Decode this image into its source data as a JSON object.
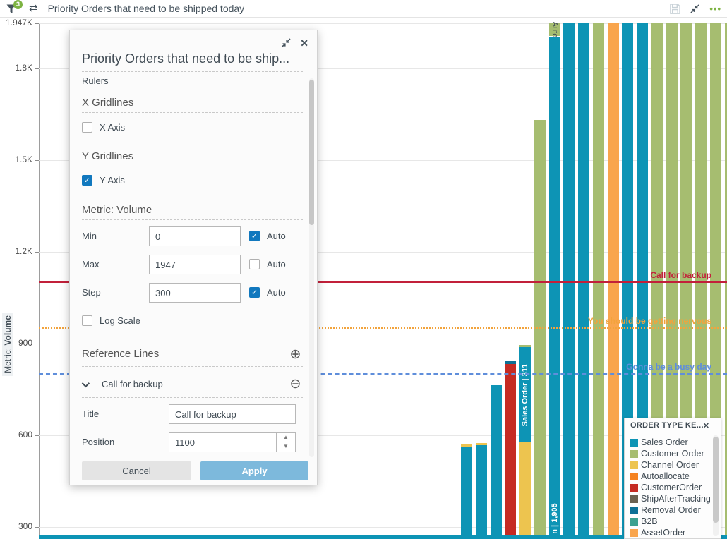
{
  "topbar": {
    "filter_badge": "3",
    "title": "Priority Orders that need to be shipped today"
  },
  "ui_colors": {
    "badge_green": "#7db342",
    "accent_scrollbar": "#0d94b5",
    "checkbox_checked": "#1178be",
    "apply_button": "#7db9dc"
  },
  "dialog": {
    "title": "Priority Orders that need to be ship...",
    "rulers_label": "Rulers",
    "x_gridlines": {
      "heading": "X Gridlines",
      "checkbox_label": "X Axis",
      "checked": false
    },
    "y_gridlines": {
      "heading": "Y Gridlines",
      "checkbox_label": "Y Axis",
      "checked": true
    },
    "metric": {
      "heading": "Metric: Volume",
      "rows": [
        {
          "label": "Min",
          "value": "0",
          "auto_label": "Auto",
          "auto_checked": true
        },
        {
          "label": "Max",
          "value": "1947",
          "auto_label": "Auto",
          "auto_checked": false
        },
        {
          "label": "Step",
          "value": "300",
          "auto_label": "Auto",
          "auto_checked": true
        }
      ],
      "log_scale_label": "Log Scale",
      "log_scale_checked": false
    },
    "reference_lines": {
      "heading": "Reference Lines",
      "line_name": "Call for backup",
      "title_label": "Title",
      "title_value": "Call for backup",
      "position_label": "Position",
      "position_value": "1100"
    },
    "cancel_label": "Cancel",
    "apply_label": "Apply"
  },
  "legend": {
    "title": "ORDER TYPE KE...",
    "items": [
      {
        "label": "Sales Order",
        "key": "sales_order"
      },
      {
        "label": "Customer Order",
        "key": "customer_order"
      },
      {
        "label": "Channel Order",
        "key": "channel_order"
      },
      {
        "label": "Autoallocate",
        "key": "autoallocate"
      },
      {
        "label": "CustomerOrder",
        "key": "customerorder_red"
      },
      {
        "label": "ShipAfterTracking",
        "key": "ship_after_tracking"
      },
      {
        "label": "Removal Order",
        "key": "removal_order"
      },
      {
        "label": "B2B",
        "key": "b2b"
      },
      {
        "label": "AssetOrder",
        "key": "asset_order"
      }
    ]
  },
  "chart_data": {
    "type": "bar",
    "title": "Priority Orders that need to be shipped today",
    "ylabel": "Metric: Volume",
    "ylabel_parts": [
      "Metric:",
      "Volume"
    ],
    "ylim": [
      0,
      1947
    ],
    "step": 300,
    "grid": "y-axis only",
    "y_ticks": [
      {
        "label": "1.947K",
        "value": 1947
      },
      {
        "label": "1.8K",
        "value": 1800
      },
      {
        "label": "1.5K",
        "value": 1500
      },
      {
        "label": "1.2K",
        "value": 1200
      },
      {
        "label": "900",
        "value": 900
      },
      {
        "label": "600",
        "value": 600
      },
      {
        "label": "300",
        "value": 300
      }
    ],
    "key_colors": {
      "sales_order": "#0d94b5",
      "customer_order": "#a6bd70",
      "channel_order": "#edc44f",
      "autoallocate": "#f58220",
      "customerorder_red": "#c52b23",
      "ship_after_tracking": "#6b6150",
      "removal_order": "#0d7095",
      "b2b": "#3ba18f",
      "asset_order": "#f9a54d"
    },
    "reference_lines": [
      {
        "title": "Call for backup",
        "value": 1100,
        "color": "#c2203a",
        "style": "solid"
      },
      {
        "title": "You should be getting nervous",
        "value": 950,
        "color": "#f2a33c",
        "style": "dotted"
      },
      {
        "title": "Gonna be a busy day",
        "value": 800,
        "color": "#5f8edb",
        "style": "dashed"
      }
    ],
    "bars": [
      {
        "segments": [
          [
            "sales_order",
            563
          ],
          [
            "channel_order",
            7
          ]
        ]
      },
      {
        "segments": [
          [
            "sales_order",
            568
          ],
          [
            "channel_order",
            7
          ]
        ]
      },
      {
        "segments": [
          [
            "sales_order",
            765
          ]
        ]
      },
      {
        "segments": [
          [
            "customerorder_red",
            833
          ],
          [
            "removal_order",
            9
          ]
        ]
      },
      {
        "segments": [
          [
            "channel_order",
            577
          ],
          [
            "sales_order",
            311
          ],
          [
            "customer_order",
            7
          ]
        ],
        "inside_label": {
          "text": "Sales Order | 311",
          "segment": 1
        }
      },
      {
        "segments": [
          [
            "customer_order",
            1632
          ]
        ]
      },
      {
        "segments": [
          [
            "sales_order",
            1905
          ],
          [
            "customer_order",
            42
          ]
        ],
        "inside_label": {
          "text": "n | 1,905",
          "anchor": "bottom"
        },
        "top_label": "Auto"
      },
      {
        "segments": [
          [
            "sales_order",
            1947
          ]
        ],
        "clipped": true
      },
      {
        "segments": [
          [
            "sales_order",
            1947
          ]
        ],
        "clipped": true
      },
      {
        "segments": [
          [
            "customer_order",
            1947
          ]
        ],
        "clipped": true
      },
      {
        "segments": [
          [
            "asset_order",
            1947
          ]
        ],
        "clipped": true
      },
      {
        "segments": [
          [
            "sales_order",
            1947
          ]
        ],
        "clipped": true
      },
      {
        "segments": [
          [
            "sales_order",
            1947
          ]
        ],
        "clipped": true
      },
      {
        "segments": [
          [
            "customer_order",
            1947
          ]
        ],
        "clipped": true
      },
      {
        "segments": [
          [
            "customer_order",
            1947
          ]
        ],
        "clipped": true
      },
      {
        "segments": [
          [
            "customer_order",
            1947
          ]
        ],
        "clipped": true
      },
      {
        "segments": [
          [
            "customer_order",
            1947
          ]
        ],
        "clipped": true
      },
      {
        "segments": [
          [
            "customer_order",
            1947
          ]
        ],
        "clipped": true
      },
      {
        "segments": [
          [
            "customer_order",
            1947
          ]
        ],
        "clipped": true
      }
    ]
  }
}
